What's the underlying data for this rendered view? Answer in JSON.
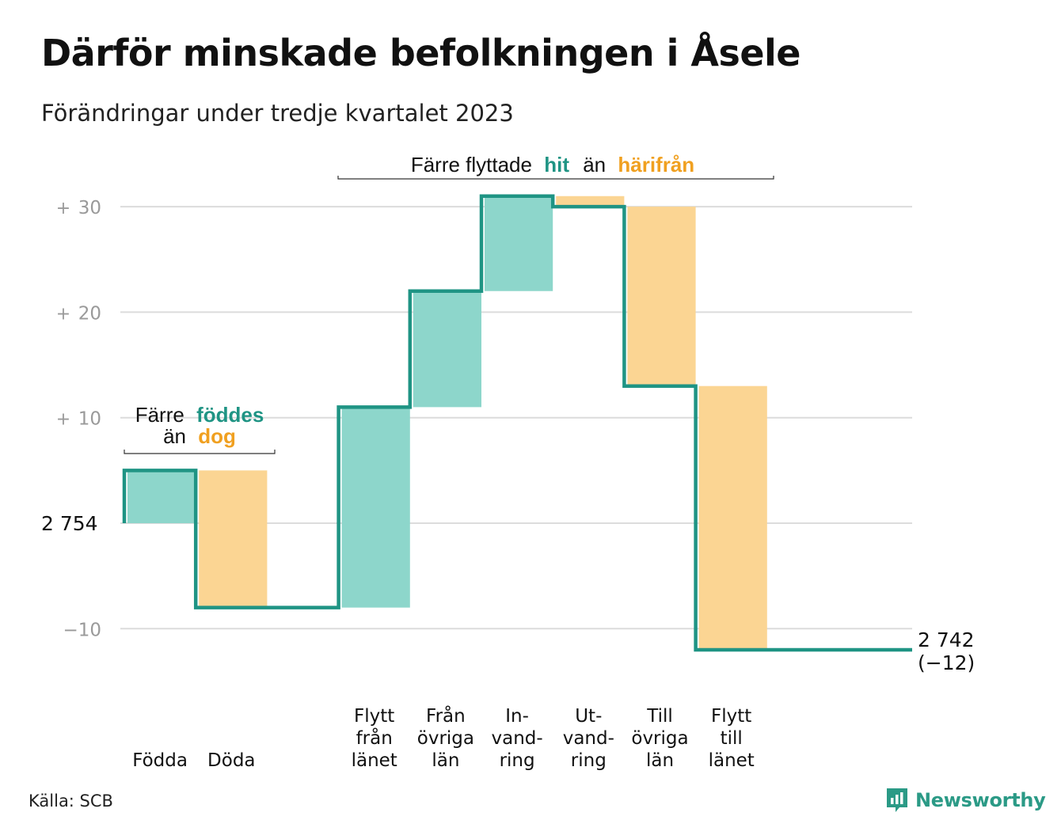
{
  "title": "Därför minskade befolkningen i Åsele",
  "subtitle": "Förändringar under tredje kvartalet 2023",
  "source": "Källa: SCB",
  "brand": {
    "name": "Newsworthy",
    "icon": "newsworthy-logo-icon"
  },
  "colors": {
    "line": "#1f9484",
    "positive": "#8dd6cb",
    "negative": "#fbd593",
    "accent_pos": "#1f9484",
    "accent_neg": "#f0a020",
    "grid": "#dcdcdc",
    "tick": "#9a9a9a"
  },
  "annotations": {
    "births": {
      "pre": "Färre",
      "pos": "föddes",
      "line2_pre": "än",
      "neg": "dog"
    },
    "migration": {
      "pre": "Färre flyttade",
      "pos": "hit",
      "mid": "än",
      "neg": "härifrån"
    }
  },
  "chart_data": {
    "type": "waterfall",
    "start_value": 2754,
    "start_label": "2 754",
    "end_label": "2 742",
    "end_change_label": "(−12)",
    "ylim": [
      -12,
      31
    ],
    "y_ticks": [
      {
        "value": 30,
        "sign": "+",
        "num": "30"
      },
      {
        "value": 20,
        "sign": "+",
        "num": "20"
      },
      {
        "value": 10,
        "sign": "+",
        "num": "10"
      },
      {
        "value": -10,
        "sign": "",
        "num": "−10"
      }
    ],
    "steps": [
      {
        "label": [
          "Födda"
        ],
        "change": 5
      },
      {
        "label": [
          "Döda"
        ],
        "change": -13
      },
      {
        "label": [],
        "change": 0
      },
      {
        "label": [
          "Flytt",
          "från",
          "länet"
        ],
        "change": 19
      },
      {
        "label": [
          "Från",
          "övriga",
          "län"
        ],
        "change": 11
      },
      {
        "label": [
          "In-",
          "vand-",
          "ring"
        ],
        "change": 9
      },
      {
        "label": [
          "Ut-",
          "vand-",
          "ring"
        ],
        "change": -1
      },
      {
        "label": [
          "Till",
          "övriga",
          "län"
        ],
        "change": -17
      },
      {
        "label": [
          "Flytt",
          "till",
          "länet"
        ],
        "change": -25
      },
      {
        "label": [],
        "change": 0
      }
    ],
    "end_change": -12
  }
}
